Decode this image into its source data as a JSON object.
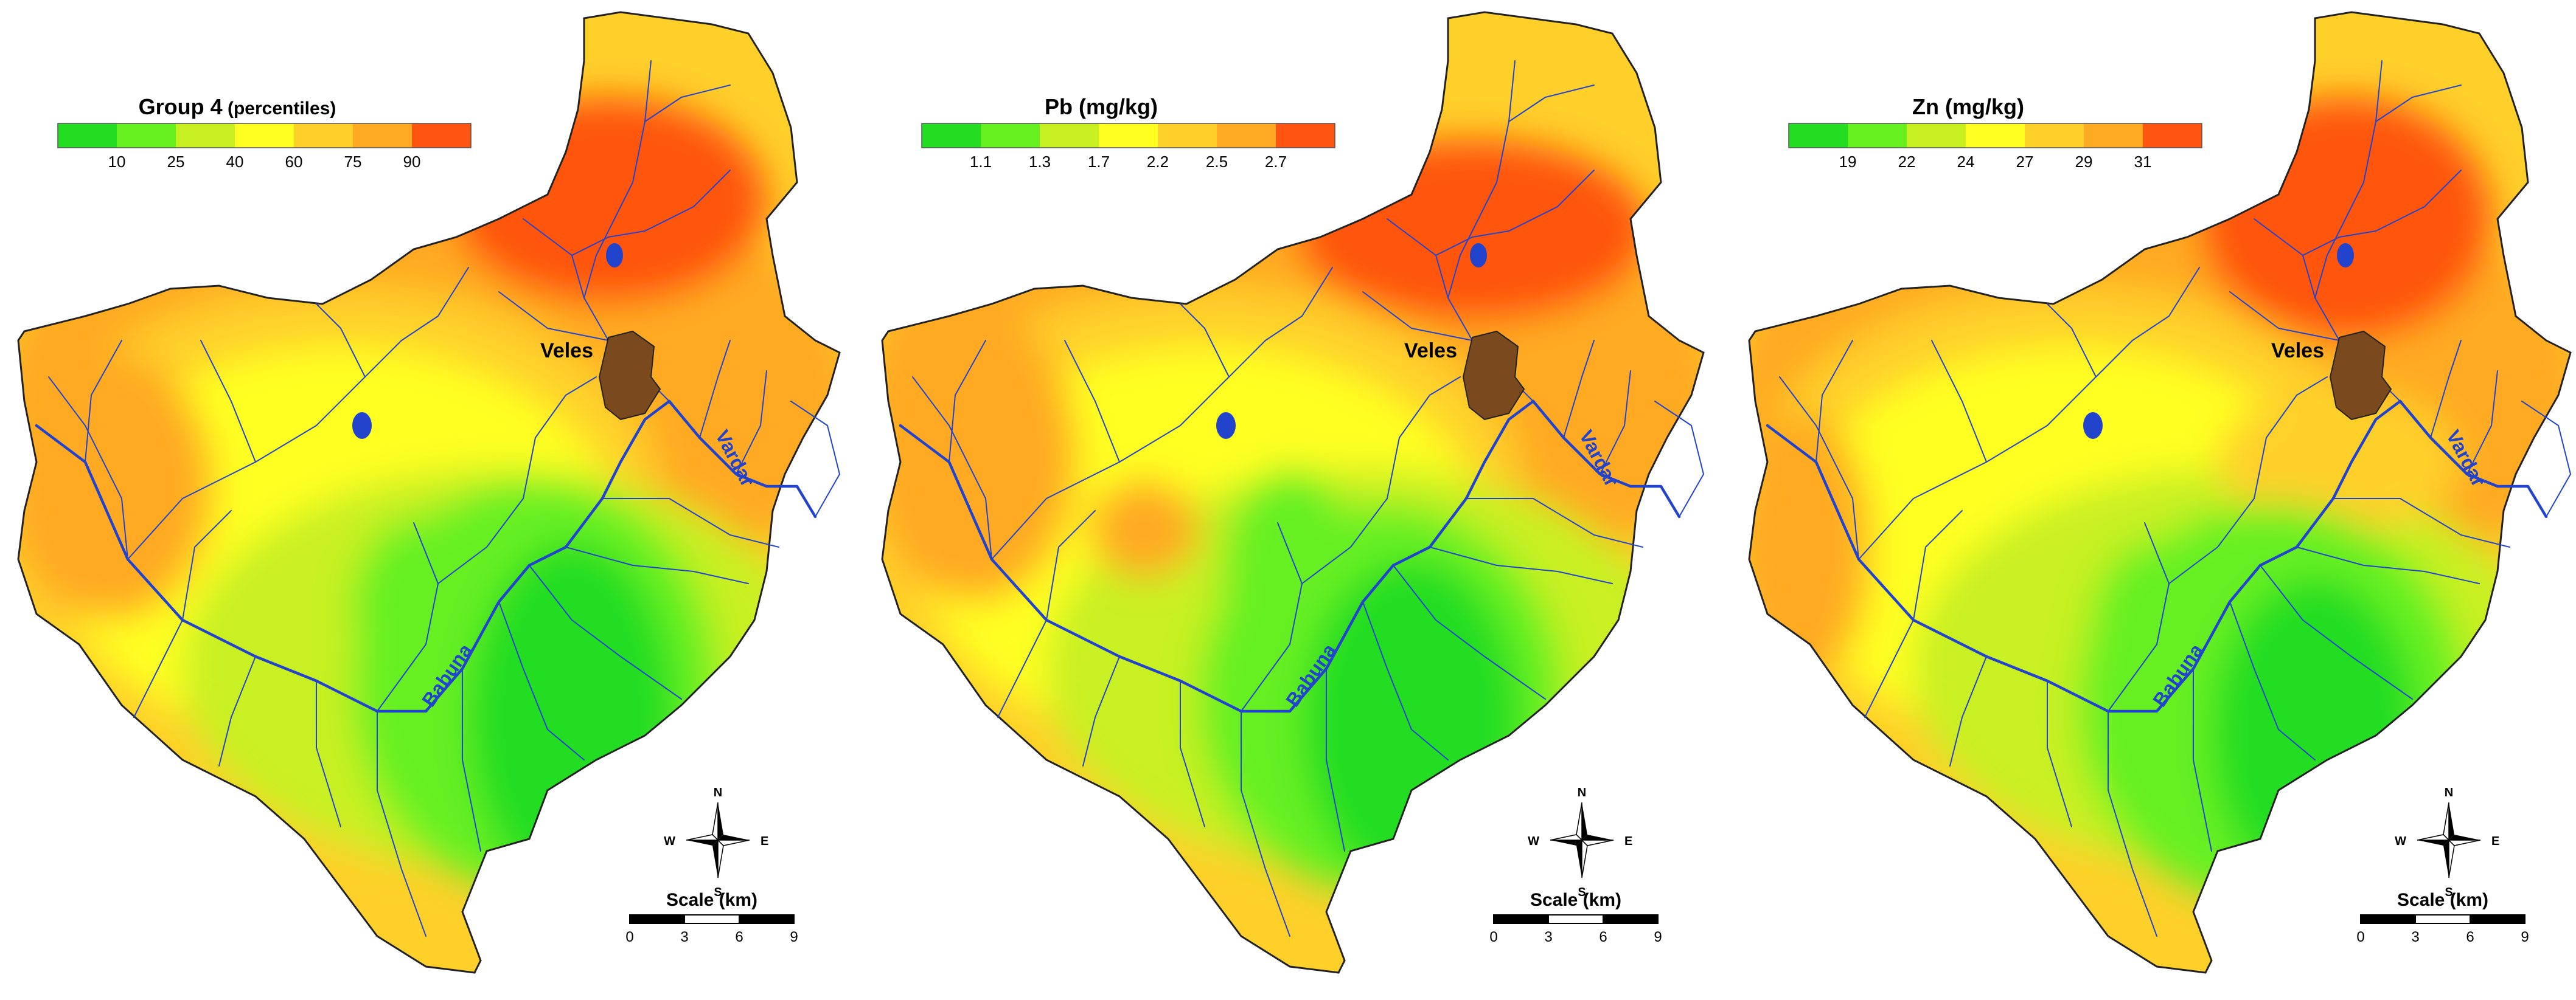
{
  "panels": [
    {
      "id": "group4",
      "legend_title": "Group 4",
      "legend_title_suffix": "(percentiles)",
      "legend_ticks": [
        "10",
        "25",
        "40",
        "60",
        "75",
        "90"
      ],
      "labels": {
        "town": "Veles",
        "river_main": "Vardar",
        "river_west": "Babuna"
      },
      "north_arrow": {
        "n": "N",
        "s": "S",
        "e": "E",
        "w": "W"
      },
      "scale": {
        "title": "Scale (km)",
        "ticks": [
          "0",
          "3",
          "6",
          "9"
        ]
      }
    },
    {
      "id": "pb",
      "legend_title": "Pb (mg/kg)",
      "legend_title_suffix": "",
      "legend_ticks": [
        "1.1",
        "1.3",
        "1.7",
        "2.2",
        "2.5",
        "2.7"
      ],
      "labels": {
        "town": "Veles",
        "river_main": "Vardar",
        "river_west": "Babuna"
      },
      "north_arrow": {
        "n": "N",
        "s": "S",
        "e": "E",
        "w": "W"
      },
      "scale": {
        "title": "Scale (km)",
        "ticks": [
          "0",
          "3",
          "6",
          "9"
        ]
      }
    },
    {
      "id": "zn",
      "legend_title": "Zn (mg/kg)",
      "legend_title_suffix": "",
      "legend_ticks": [
        "19",
        "22",
        "24",
        "27",
        "29",
        "31"
      ],
      "labels": {
        "town": "Veles",
        "river_main": "Vardar",
        "river_west": "Babuna"
      },
      "north_arrow": {
        "n": "N",
        "s": "S",
        "e": "E",
        "w": "W"
      },
      "scale": {
        "title": "Scale (km)",
        "ticks": [
          "0",
          "3",
          "6",
          "9"
        ]
      }
    }
  ],
  "colors": {
    "class_1": "#22dd22",
    "class_2": "#66f020",
    "class_3": "#c8f020",
    "class_4": "#ffff22",
    "class_5": "#ffd02a",
    "class_6": "#ffaa22",
    "class_7": "#ff5511",
    "river": "#2244cc",
    "town": "#7a4a1e",
    "outline": "#222222"
  }
}
